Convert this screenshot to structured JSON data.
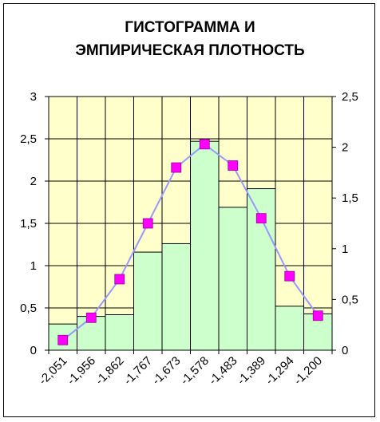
{
  "chart_data": {
    "type": "bar",
    "title_lines": [
      "ГИСТОГРАММА И",
      "ЭМПИРИЧЕСКАЯ ПЛОТНОСТЬ"
    ],
    "xlabel": "",
    "ylabel": "",
    "x_tick_labels": [
      "-2,051",
      "-1,956",
      "-1,862",
      "-1,767",
      "-1,673",
      "-1,578",
      "-1,483",
      "-1,389",
      "-1,294",
      "-1,200"
    ],
    "left_axis": {
      "ylim": [
        0,
        3
      ],
      "tick_values": [
        0,
        0.5,
        1,
        1.5,
        2,
        2.5,
        3
      ],
      "tick_labels": [
        "0",
        "0,5",
        "1",
        "1,5",
        "2",
        "2,5",
        "3"
      ]
    },
    "right_axis": {
      "ylim": [
        0,
        2.5
      ],
      "tick_values": [
        0,
        0.5,
        1,
        1.5,
        2,
        2.5
      ],
      "tick_labels": [
        "0",
        "0,5",
        "1",
        "1,5",
        "2",
        "2,5"
      ]
    },
    "series": [
      {
        "type": "bar",
        "axis": "left",
        "values": [
          0.31,
          0.4,
          0.42,
          1.16,
          1.26,
          2.47,
          1.69,
          1.91,
          0.52,
          0.43
        ],
        "color": "#ccffcc"
      },
      {
        "type": "line",
        "axis": "right",
        "values": [
          0.1,
          0.32,
          0.7,
          1.25,
          1.8,
          2.03,
          1.82,
          1.3,
          0.73,
          0.34
        ],
        "line_color": "#9999ff",
        "marker_color": "#ff00ff"
      }
    ],
    "grid": true,
    "plot_background": "#ffffcc",
    "legend": "none"
  }
}
